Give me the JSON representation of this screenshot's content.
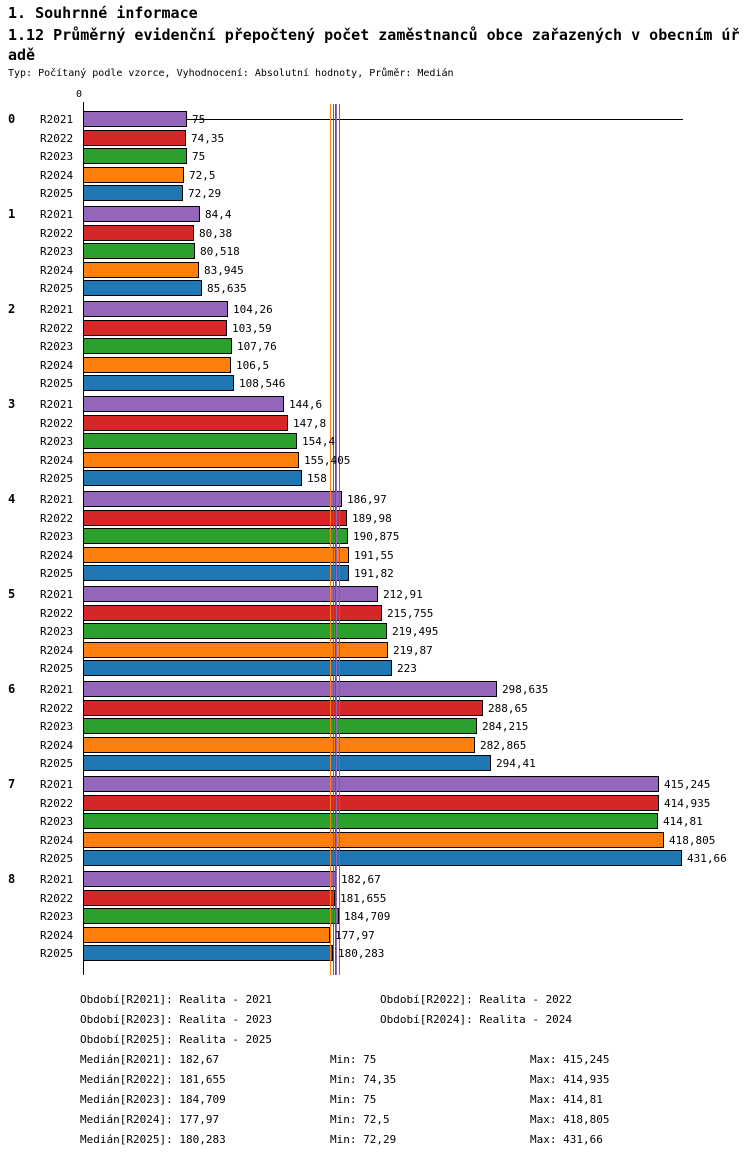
{
  "chart_data": {
    "type": "bar",
    "orientation": "horizontal",
    "title": "1. Souhrnné informace",
    "subtitle": "1.12 Průměrný evidenční přepočtený počet zaměstnanců obce zařazených v obecním úřadě",
    "meta": "Typ: Počítaný podle vzorce, Vyhodnocení: Absolutní hodnoty, Průměr: Medián",
    "axis_origin_label": "0",
    "xlim": [
      0,
      435
    ],
    "grid": false,
    "categories": [
      "0",
      "1",
      "2",
      "3",
      "4",
      "5",
      "6",
      "7",
      "8"
    ],
    "series": [
      {
        "name": "R2021",
        "color": "#9467bd",
        "values": [
          75,
          84.4,
          104.26,
          144.6,
          186.97,
          212.91,
          298.635,
          415.245,
          182.67
        ],
        "labels": [
          "75",
          "84,4",
          "104,26",
          "144,6",
          "186,97",
          "212,91",
          "298,635",
          "415,245",
          "182,67"
        ]
      },
      {
        "name": "R2022",
        "color": "#d62728",
        "values": [
          74.35,
          80.38,
          103.59,
          147.8,
          189.98,
          215.755,
          288.65,
          414.935,
          181.655
        ],
        "labels": [
          "74,35",
          "80,38",
          "103,59",
          "147,8",
          "189,98",
          "215,755",
          "288,65",
          "414,935",
          "181,655"
        ]
      },
      {
        "name": "R2023",
        "color": "#2ca02c",
        "values": [
          75,
          80.518,
          107.76,
          154.4,
          190.875,
          219.495,
          284.215,
          414.81,
          184.709
        ],
        "labels": [
          "75",
          "80,518",
          "107,76",
          "154,4",
          "190,875",
          "219,495",
          "284,215",
          "414,81",
          "184,709"
        ]
      },
      {
        "name": "R2024",
        "color": "#ff7f0e",
        "values": [
          72.5,
          83.945,
          106.5,
          155.405,
          191.55,
          219.87,
          282.865,
          418.805,
          177.97
        ],
        "labels": [
          "72,5",
          "83,945",
          "106,5",
          "155,405",
          "191,55",
          "219,87",
          "282,865",
          "418,805",
          "177,97"
        ]
      },
      {
        "name": "R2025",
        "color": "#1f77b4",
        "values": [
          72.29,
          85.635,
          108.546,
          158,
          191.82,
          223,
          294.41,
          431.66,
          180.283
        ],
        "labels": [
          "72,29",
          "85,635",
          "108,546",
          "158",
          "191,82",
          "223",
          "294,41",
          "431,66",
          "180,283"
        ]
      }
    ],
    "medians": [
      {
        "name": "R2021",
        "value": 182.67,
        "label": "182,67",
        "color": "#9467bd"
      },
      {
        "name": "R2022",
        "value": 181.655,
        "label": "181,655",
        "color": "#d62728"
      },
      {
        "name": "R2023",
        "value": 184.709,
        "label": "184,709",
        "color": "#2ca02c"
      },
      {
        "name": "R2024",
        "value": 177.97,
        "label": "177,97",
        "color": "#ff7f0e"
      },
      {
        "name": "R2025",
        "value": 180.283,
        "label": "180,283",
        "color": "#1f77b4"
      }
    ],
    "legend_periods": [
      "Období[R2021]: Realita - 2021",
      "Období[R2022]: Realita - 2022",
      "Období[R2023]: Realita - 2023",
      "Období[R2024]: Realita - 2024",
      "Období[R2025]: Realita - 2025"
    ],
    "legend_stats": [
      {
        "median": "Medián[R2021]: 182,67",
        "min": "Min: 75",
        "max": "Max: 415,245"
      },
      {
        "median": "Medián[R2022]: 181,655",
        "min": "Min: 74,35",
        "max": "Max: 414,935"
      },
      {
        "median": "Medián[R2023]: 184,709",
        "min": "Min: 75",
        "max": "Max: 414,81"
      },
      {
        "median": "Medián[R2024]: 177,97",
        "min": "Min: 72,5",
        "max": "Max: 418,805"
      },
      {
        "median": "Medián[R2025]: 180,283",
        "min": "Min: 72,29",
        "max": "Max: 431,66"
      }
    ]
  }
}
